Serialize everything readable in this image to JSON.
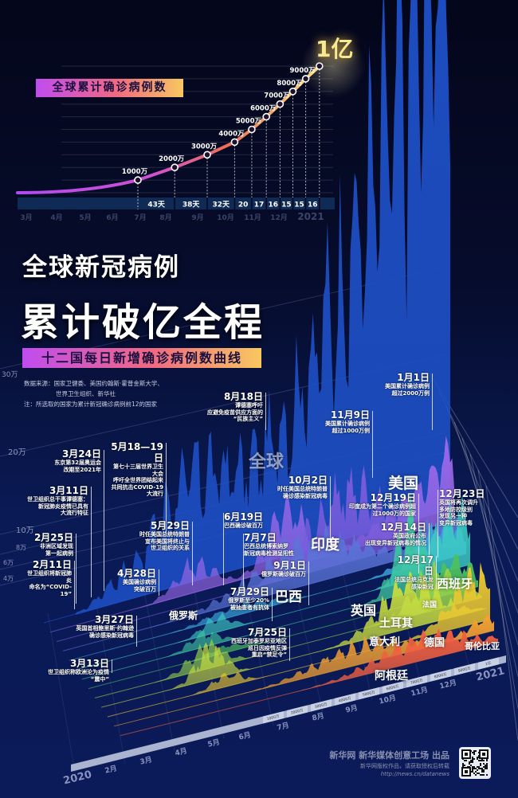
{
  "colors": {
    "background": "#060c2c",
    "accent_gradient": [
      "#c04cf0",
      "#f06a80",
      "#f8c860"
    ],
    "global": "#1e50c8"
  },
  "top_chart": {
    "label": "全球累计确诊病例数",
    "headline_value": "1亿"
  },
  "title": {
    "line1": "全球新冠病例",
    "line2": "累计破亿全程"
  },
  "subtitle": "十二国每日新增确诊病例数曲线",
  "source": {
    "line1": "数据来源：国家卫健委、美国约翰斯·霍普金斯大学、",
    "line2": "世界卫生组织、新华社",
    "note": "注：所选取的国家为累计新冠确诊病例前12的国家"
  },
  "chart_data": [
    {
      "type": "line",
      "title": "全球累计确诊病例数",
      "x_ticks": [
        "3月",
        "4月",
        "5月",
        "6月",
        "7月",
        "8月",
        "9月",
        "10月",
        "11月",
        "12月",
        "2021"
      ],
      "milestones": [
        {
          "label": "1000万",
          "value": 1000
        },
        {
          "label": "2000万",
          "value": 2000,
          "days_since_previous": "43天"
        },
        {
          "label": "3000万",
          "value": 3000,
          "days_since_previous": "38天"
        },
        {
          "label": "4000万",
          "value": 4000,
          "days_since_previous": "32天"
        },
        {
          "label": "5000万",
          "value": 5000,
          "days_since_previous": "20"
        },
        {
          "label": "6000万",
          "value": 6000,
          "days_since_previous": "17"
        },
        {
          "label": "7000万",
          "value": 7000,
          "days_since_previous": "16"
        },
        {
          "label": "8000万",
          "value": 8000,
          "days_since_previous": "15"
        },
        {
          "label": "9000万",
          "value": 9000,
          "days_since_previous": "15"
        },
        {
          "label": "1亿",
          "value": 10000,
          "days_since_previous": "16"
        }
      ],
      "unit": "万"
    },
    {
      "type": "area",
      "title": "十二国每日新增确诊病例数曲线",
      "y_ticks": [
        "30万",
        "20万",
        "10万",
        "8万",
        "6万",
        "4万"
      ],
      "x_ticks": [
        "2020",
        "2月",
        "3月",
        "4月",
        "5月",
        "6月",
        "7月",
        "8月",
        "9月",
        "10月",
        "11月",
        "12月",
        "2021"
      ],
      "axis_markers": [
        "1000万",
        "2000万",
        "3000万",
        "4000万",
        "5000万",
        "6000万",
        "7000万",
        "8000万",
        "9000万",
        "1亿"
      ],
      "series": [
        {
          "name": "全球",
          "color": "#1e50c8"
        },
        {
          "name": "美国",
          "color": "#9a68e8"
        },
        {
          "name": "印度",
          "color": "#7a5cdc"
        },
        {
          "name": "巴西",
          "color": "#5a74d8"
        },
        {
          "name": "俄罗斯",
          "color": "#3aa4dc"
        },
        {
          "name": "英国",
          "color": "#3ccac4"
        },
        {
          "name": "法国",
          "color": "#3ec8a0"
        },
        {
          "name": "土耳其",
          "color": "#4cc060"
        },
        {
          "name": "意大利",
          "color": "#94d24c"
        },
        {
          "name": "西班牙",
          "color": "#c8dc40"
        },
        {
          "name": "德国",
          "color": "#ecc830"
        },
        {
          "name": "哥伦比亚",
          "color": "#f2a032"
        },
        {
          "name": "阿根廷",
          "color": "#f06040"
        }
      ]
    }
  ],
  "annotations": [
    {
      "date": "2月11日",
      "text": "世卫组织将新冠肺炎\n命名为“COVID-19”"
    },
    {
      "date": "2月25日",
      "text": "非洲区域发现\n第一起病例"
    },
    {
      "date": "3月11日",
      "text": "世卫组织总干事谭德塞：\n新冠肺炎疫情已具有\n大流行特征"
    },
    {
      "date": "3月24日",
      "text": "东京第32届奥运会\n改期至2021年"
    },
    {
      "date": "3月27日",
      "text": "英国首相鲍里斯·约翰逊\n确诊感染新冠病毒"
    },
    {
      "date": "3月13日",
      "text": "世卫组织称欧洲沦为疫情\n“震中”"
    },
    {
      "date": "4月28日",
      "text": "美国确诊病例\n突破百万"
    },
    {
      "date": "5月18—19日",
      "text": "第七十三届世界卫生大会\n呼吁全世界团结起来\n共同抗击COVID-19大流行"
    },
    {
      "date": "5月29日",
      "text": "时任美国总统特朗普\n宣布美国将终止与\n世卫组织的关系"
    },
    {
      "date": "6月19日",
      "text": "巴西确诊破百万"
    },
    {
      "date": "7月7日",
      "text": "巴西总统博索纳罗\n新冠病毒检测呈阳性"
    },
    {
      "date": "7月29日",
      "text": "俄罗斯至少20%\n被抽查者有抗体"
    },
    {
      "date": "7月25日",
      "text": "西班牙加泰罗尼亚地区\n巡日因疫情反弹\n重启“禁足令”"
    },
    {
      "date": "8月18日",
      "text": "谭德塞呼吁\n应避免疫苗供应方面的\n“民族主义”"
    },
    {
      "date": "9月1日",
      "text": "俄罗斯确诊破百万"
    },
    {
      "date": "10月2日",
      "text": "时任美国总统特朗普\n确诊感染新冠病毒"
    },
    {
      "date": "11月9日",
      "text": "美国累计确诊病例\n超过1000万例"
    },
    {
      "date": "1月1日",
      "text": "美国累计确诊病例\n超过2000万例"
    },
    {
      "date": "12月19日",
      "text": "印度成为第二个确诊病例超\n过1000万的国家"
    },
    {
      "date": "12月14日",
      "text": "英国政府公布\n出现变异新冠病毒的情况"
    },
    {
      "date": "12月17日",
      "text": "法国总统马克龙\n感染新冠"
    },
    {
      "date": "12月23日",
      "text": "英国将再次调升\n多地防控级别\n发现另一种\n变异新冠病毒"
    }
  ],
  "footer": {
    "producer": "新华网 新华媒体创意工场 出品",
    "copyright": "新华网版权作品，请获取授权后转载",
    "url": "http://news.cn/datanews",
    "qr_icon": "qr-code-icon"
  }
}
